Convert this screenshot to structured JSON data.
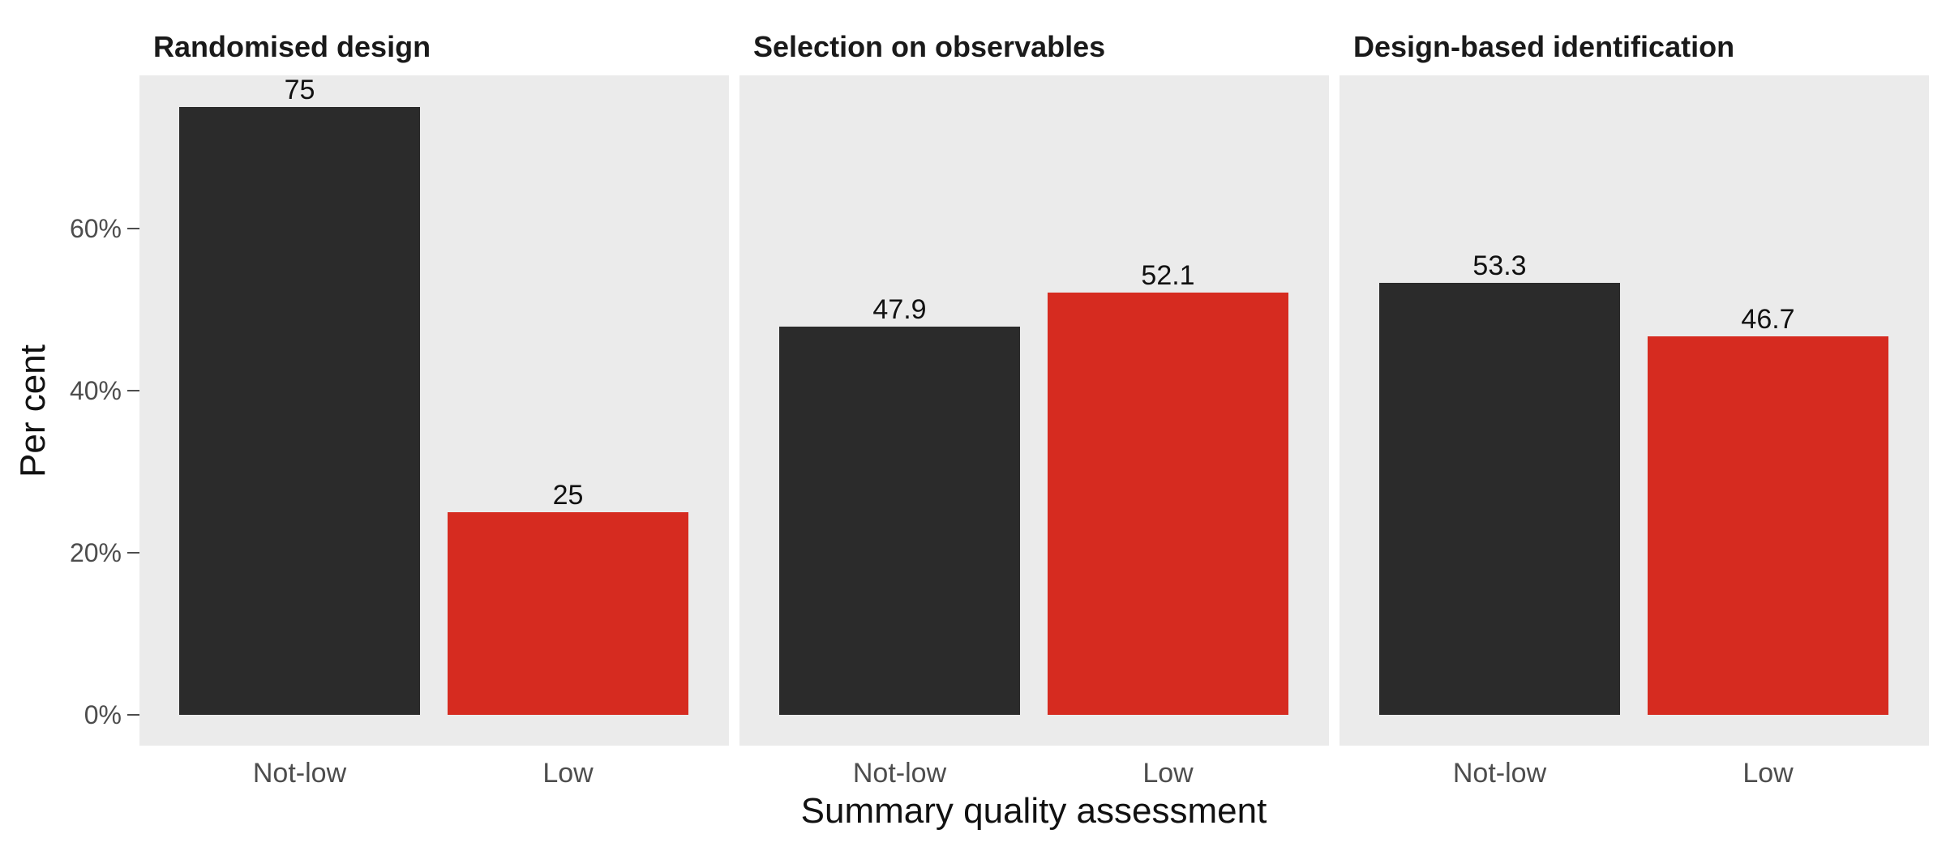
{
  "chart_data": {
    "type": "bar",
    "facets": [
      {
        "title": "Randomised design",
        "categories": [
          "Not-low",
          "Low"
        ],
        "values": [
          75,
          25
        ],
        "labels": [
          "75",
          "25"
        ]
      },
      {
        "title": "Selection on observables",
        "categories": [
          "Not-low",
          "Low"
        ],
        "values": [
          47.9,
          52.1
        ],
        "labels": [
          "47.9",
          "52.1"
        ]
      },
      {
        "title": "Design-based identification",
        "categories": [
          "Not-low",
          "Low"
        ],
        "values": [
          53.3,
          46.7
        ],
        "labels": [
          "53.3",
          "46.7"
        ]
      }
    ],
    "xlabel": "Summary quality assessment",
    "ylabel": "Per cent",
    "yticks": [
      0,
      20,
      40,
      60
    ],
    "ytick_labels": [
      "0%",
      "20%",
      "40%",
      "60%"
    ],
    "ylim": [
      0,
      78.75
    ],
    "grid": false,
    "legend": "none",
    "colors": {
      "Not-low": "#2b2b2b",
      "Low": "#d62b20",
      "panel_background": "#ebebeb"
    }
  }
}
